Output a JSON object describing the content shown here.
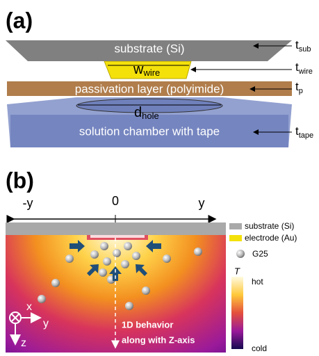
{
  "panel_a": {
    "label": "(a)",
    "layers": {
      "substrate": "substrate (Si)",
      "passivation": "passivation layer (polyimide)",
      "chamber": "solution chamber with tape"
    },
    "wire": {
      "main": "w",
      "sub": "wire"
    },
    "hole": {
      "main": "d",
      "sub": "hole"
    },
    "thickness": [
      {
        "main": "t",
        "sub": "sub"
      },
      {
        "main": "t",
        "sub": "wire"
      },
      {
        "main": "t",
        "sub": "p"
      },
      {
        "main": "t",
        "sub": "tape"
      }
    ]
  },
  "panel_b": {
    "label": "(b)",
    "axis": {
      "left": "-y",
      "center": "0",
      "right": "y"
    },
    "legend": {
      "substrate": "substrate (Si)",
      "electrode": "electrode (Au)",
      "particle": "G25"
    },
    "colorbar": {
      "title": "T",
      "high": "hot",
      "low": "cold"
    },
    "frame": {
      "x": "x",
      "y": "y",
      "z": "z"
    },
    "annotation": [
      "1D behavior",
      "along with Z-axis"
    ]
  }
}
